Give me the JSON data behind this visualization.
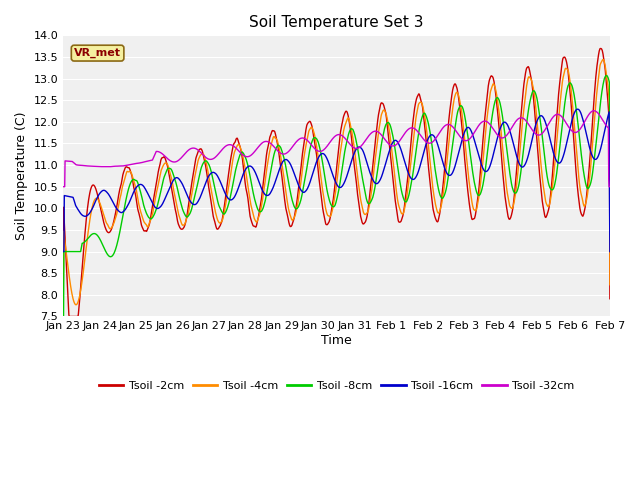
{
  "title": "Soil Temperature Set 3",
  "xlabel": "Time",
  "ylabel": "Soil Temperature (C)",
  "ylim": [
    7.5,
    14.0
  ],
  "yticks": [
    7.5,
    8.0,
    8.5,
    9.0,
    9.5,
    10.0,
    10.5,
    11.0,
    11.5,
    12.0,
    12.5,
    13.0,
    13.5,
    14.0
  ],
  "series_colors": {
    "Tsoil -2cm": "#cc0000",
    "Tsoil -4cm": "#ff8c00",
    "Tsoil -8cm": "#00cc00",
    "Tsoil -16cm": "#0000cc",
    "Tsoil -32cm": "#cc00cc"
  },
  "legend_label": "VR_met",
  "fig_bg_color": "#ffffff",
  "plot_bg_color": "#f0f0f0",
  "grid_color": "#ffffff",
  "n_points": 1440,
  "x_start": 0,
  "x_end": 15,
  "xtick_positions": [
    0,
    1,
    2,
    3,
    4,
    5,
    6,
    7,
    8,
    9,
    10,
    11,
    12,
    13,
    14,
    15
  ],
  "xtick_labels": [
    "Jan 23",
    "Jan 24",
    "Jan 25",
    "Jan 26",
    "Jan 27",
    "Jan 28",
    "Jan 29",
    "Jan 30",
    "Jan 31",
    "Feb 1",
    "Feb 2",
    "Feb 3",
    "Feb 4",
    "Feb 5",
    "Feb 6",
    "Feb 7"
  ]
}
